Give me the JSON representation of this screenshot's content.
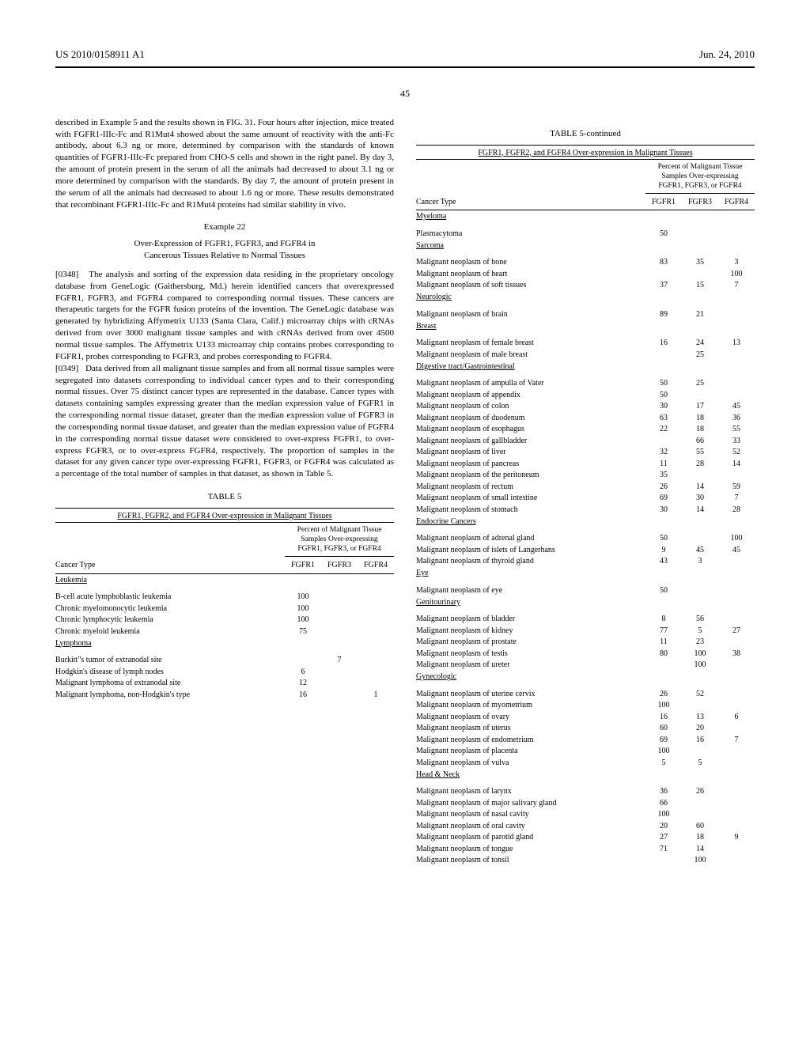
{
  "header": {
    "left": "US 2010/0158911 A1",
    "right": "Jun. 24, 2010",
    "page": "45"
  },
  "left_column": {
    "continuation_text": "described in Example 5 and the results shown in FIG. 31. Four hours after injection, mice treated with FGFR1-IIIc-Fc and R1Mut4 showed about the same amount of reactivity with the anti-Fc antibody, about 6.3 ng or more, determined by comparison with the standards of known quantities of FGFR1-IIIc-Fc prepared from CHO-S cells and shown in the right panel. By day 3, the amount of protein present in the serum of all the animals had decreased to about 3.1 ng or more determined by comparison with the standards. By day 7, the amount of protein present in the serum of all the animals had decreased to about 1.6 ng or more. These results demonstrated that recombinant FGFR1-IIIc-Fc and R1Mut4 proteins had similar stability in vivo.",
    "example_title": "Example 22",
    "example_subtitle_line1": "Over-Expression of FGFR1, FGFR3, and FGFR4 in",
    "example_subtitle_line2": "Cancerous Tissues Relative to Normal Tissues",
    "para_0348_num": "[0348]",
    "para_0348": "The analysis and sorting of the expression data residing in the proprietary oncology database from GeneLogic (Gaithersburg, Md.) herein identified cancers that overexpressed FGFR1, FGFR3, and FGFR4 compared to corresponding normal tissues. These cancers are therapeutic targets for the FGFR fusion proteins of the invention. The GeneLogic database was generated by hybridizing Affymetrix U133 (Santa Clara, Calif.) microarray chips with cRNAs derived from over 3000 malignant tissue samples and with cRNAs derived from over 4500 normal tissue samples. The Affymetrix U133 microarray chip contains probes corresponding to FGFR1, probes corresponding to FGFR3, and probes corresponding to FGFR4.",
    "para_0349_num": "[0349]",
    "para_0349": "Data derived from all malignant tissue samples and from all normal tissue samples were segregated into datasets corresponding to individual cancer types and to their corresponding normal tissues. Over 75 distinct cancer types are represented in the database. Cancer types with datasets containing samples expressing greater than the median expression value of FGFR1 in the corresponding normal tissue dataset, greater than the median expression value of FGFR3 in the corresponding normal tissue dataset, and greater than the median expression value of FGFR4 in the corresponding normal tissue dataset were considered to over-express FGFR1, to over-express FGFR3, or to over-express FGFR4, respectively. The proportion of samples in the dataset for any given cancer type over-expressing FGFR1, FGFR3, or FGFR4 was calculated as a percentage of the total number of samples in that dataset, as shown in Table 5."
  },
  "table5_left": {
    "label": "TABLE 5",
    "title": "FGFR1, FGFR2, and FGFR4 Over-expression in Malignant Tissues",
    "subhead_line1": "Percent of Malignant Tissue",
    "subhead_line2": "Samples Over-expressing",
    "subhead_line3": "FGFR1, FGFR3, or FGFR4",
    "col_cancer": "Cancer Type",
    "col_fgfr1": "FGFR1",
    "col_fgfr3": "FGFR3",
    "col_fgfr4": "FGFR4",
    "sections": [
      {
        "name": "Leukemia",
        "rows": [
          {
            "ct": "B-cell acute lymphoblastic leukemia",
            "v1": "100",
            "v3": "",
            "v4": ""
          },
          {
            "ct": "Chronic myelomonocytic leukemia",
            "v1": "100",
            "v3": "",
            "v4": ""
          },
          {
            "ct": "Chronic lymphocytic leukemia",
            "v1": "100",
            "v3": "",
            "v4": ""
          },
          {
            "ct": "Chronic myeloid leukemia",
            "v1": "75",
            "v3": "",
            "v4": ""
          }
        ]
      },
      {
        "name": "Lymphoma",
        "rows": [
          {
            "ct": "Burkitt\"s tumor of extranodal site",
            "v1": "",
            "v3": "7",
            "v4": ""
          },
          {
            "ct": "Hodgkin's disease of lymph nodes",
            "v1": "6",
            "v3": "",
            "v4": ""
          },
          {
            "ct": "Malignant lymphoma of extranodal site",
            "v1": "12",
            "v3": "",
            "v4": ""
          },
          {
            "ct": "Malignant lymphoma, non-Hodgkin's type",
            "v1": "16",
            "v3": "",
            "v4": "1"
          }
        ]
      }
    ]
  },
  "table5_right": {
    "label": "TABLE 5-continued",
    "title": "FGFR1, FGFR2, and FGFR4 Over-expression in Malignant Tissues",
    "subhead_line1": "Percent of Malignant Tissue",
    "subhead_line2": "Samples Over-expressing",
    "subhead_line3": "FGFR1, FGFR3, or FGFR4",
    "col_cancer": "Cancer Type",
    "col_fgfr1": "FGFR1",
    "col_fgfr3": "FGFR3",
    "col_fgfr4": "FGFR4",
    "sections": [
      {
        "name": "Myeloma",
        "rows": [
          {
            "ct": "Plasmacytoma",
            "v1": "50",
            "v3": "",
            "v4": ""
          }
        ]
      },
      {
        "name": "Sarcoma",
        "rows": [
          {
            "ct": "Malignant neoplasm of bone",
            "v1": "83",
            "v3": "35",
            "v4": "3"
          },
          {
            "ct": "Malignant neoplasm of heart",
            "v1": "",
            "v3": "",
            "v4": "100"
          },
          {
            "ct": "Malignant neoplasm of soft tissues",
            "v1": "37",
            "v3": "15",
            "v4": "7"
          }
        ]
      },
      {
        "name": "Neurologic",
        "rows": [
          {
            "ct": "Malignant neoplasm of brain",
            "v1": "89",
            "v3": "21",
            "v4": ""
          }
        ]
      },
      {
        "name": "Breast",
        "rows": [
          {
            "ct": "Malignant neoplasm of female breast",
            "v1": "16",
            "v3": "24",
            "v4": "13"
          },
          {
            "ct": "Malignant neoplasm of male breast",
            "v1": "",
            "v3": "25",
            "v4": ""
          }
        ]
      },
      {
        "name": "Digestive tract/Gastrointestinal",
        "rows": [
          {
            "ct": "Malignant neoplasm of ampulla of Vater",
            "v1": "50",
            "v3": "25",
            "v4": ""
          },
          {
            "ct": "Malignant neoplasm of appendix",
            "v1": "50",
            "v3": "",
            "v4": ""
          },
          {
            "ct": "Malignant neoplasm of colon",
            "v1": "30",
            "v3": "17",
            "v4": "45"
          },
          {
            "ct": "Malignant neoplasm of duodenum",
            "v1": "63",
            "v3": "18",
            "v4": "36"
          },
          {
            "ct": "Malignant neoplasm of esophagus",
            "v1": "22",
            "v3": "18",
            "v4": "55"
          },
          {
            "ct": "Malignant neoplasm of gallbladder",
            "v1": "",
            "v3": "66",
            "v4": "33"
          },
          {
            "ct": "Malignant neoplasm of liver",
            "v1": "32",
            "v3": "55",
            "v4": "52"
          },
          {
            "ct": "Malignant neoplasm of pancreas",
            "v1": "11",
            "v3": "28",
            "v4": "14"
          },
          {
            "ct": "Malignant neoplasm of the peritoneum",
            "v1": "35",
            "v3": "",
            "v4": ""
          },
          {
            "ct": "Malignant neoplasm of rectum",
            "v1": "26",
            "v3": "14",
            "v4": "59"
          },
          {
            "ct": "Malignant neoplasm of small intestine",
            "v1": "69",
            "v3": "30",
            "v4": "7"
          },
          {
            "ct": "Malignant neoplasm of stomach",
            "v1": "30",
            "v3": "14",
            "v4": "28"
          }
        ]
      },
      {
        "name": "Endocrine Cancers",
        "rows": [
          {
            "ct": "Malignant neoplasm of adrenal gland",
            "v1": "50",
            "v3": "",
            "v4": "100"
          },
          {
            "ct": "Malignant neoplasm of islets of Langerhans",
            "v1": "9",
            "v3": "45",
            "v4": "45"
          },
          {
            "ct": "Malignant neoplasm of thyroid gland",
            "v1": "43",
            "v3": "3",
            "v4": ""
          }
        ]
      },
      {
        "name": "Eye",
        "rows": [
          {
            "ct": "Malignant neoplasm of eye",
            "v1": "50",
            "v3": "",
            "v4": ""
          }
        ]
      },
      {
        "name": "Genitourinary",
        "rows": [
          {
            "ct": "Malignant neoplasm of bladder",
            "v1": "8",
            "v3": "56",
            "v4": ""
          },
          {
            "ct": "Malignant neoplasm of kidney",
            "v1": "77",
            "v3": "5",
            "v4": "27"
          },
          {
            "ct": "Malignant neoplasm of prostate",
            "v1": "11",
            "v3": "23",
            "v4": ""
          },
          {
            "ct": "Malignant neoplasm of testis",
            "v1": "80",
            "v3": "100",
            "v4": "38"
          },
          {
            "ct": "Malignant neoplasm of ureter",
            "v1": "",
            "v3": "100",
            "v4": ""
          }
        ]
      },
      {
        "name": "Gynecologic",
        "rows": [
          {
            "ct": "Malignant neoplasm of uterine cervix",
            "v1": "26",
            "v3": "52",
            "v4": ""
          },
          {
            "ct": "Malignant neoplasm of myometrium",
            "v1": "100",
            "v3": "",
            "v4": ""
          },
          {
            "ct": "Malignant neoplasm of ovary",
            "v1": "16",
            "v3": "13",
            "v4": "6"
          },
          {
            "ct": "Malignant neoplasm of uterus",
            "v1": "60",
            "v3": "20",
            "v4": ""
          },
          {
            "ct": "Malignant neoplasm of endometrium",
            "v1": "69",
            "v3": "16",
            "v4": "7"
          },
          {
            "ct": "Malignant neoplasm of placenta",
            "v1": "100",
            "v3": "",
            "v4": ""
          },
          {
            "ct": "Malignant neoplasm of vulva",
            "v1": "5",
            "v3": "5",
            "v4": ""
          }
        ]
      },
      {
        "name": "Head & Neck",
        "rows": [
          {
            "ct": "Malignant neoplasm of larynx",
            "v1": "36",
            "v3": "26",
            "v4": ""
          },
          {
            "ct": "Malignant neoplasm of major salivary gland",
            "v1": "66",
            "v3": "",
            "v4": ""
          },
          {
            "ct": "Malignant neoplasm of nasal cavity",
            "v1": "100",
            "v3": "",
            "v4": ""
          },
          {
            "ct": "Malignant neoplasm of oral cavity",
            "v1": "20",
            "v3": "60",
            "v4": ""
          },
          {
            "ct": "Malignant neoplasm of parotid gland",
            "v1": "27",
            "v3": "18",
            "v4": "9"
          },
          {
            "ct": "Malignant neoplasm of tongue",
            "v1": "71",
            "v3": "14",
            "v4": ""
          },
          {
            "ct": "Malignant neoplasm of tonsil",
            "v1": "",
            "v3": "100",
            "v4": ""
          }
        ]
      }
    ]
  }
}
